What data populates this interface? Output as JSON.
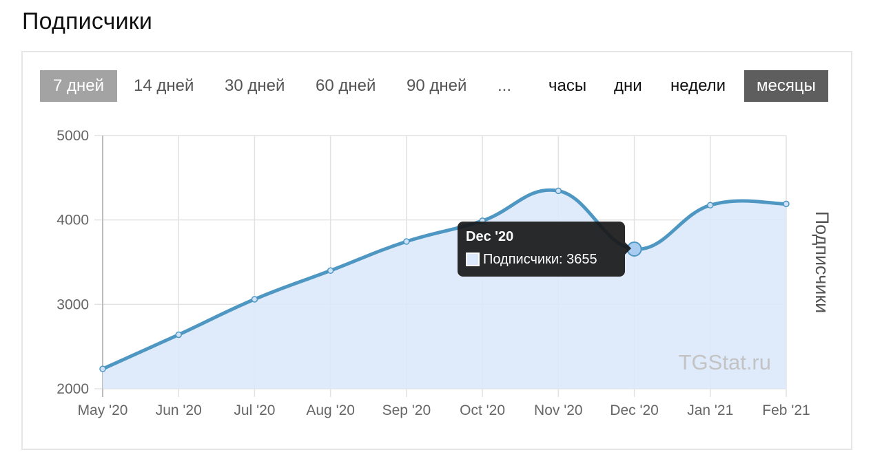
{
  "page": {
    "title": "Подписчики"
  },
  "range_buttons": [
    {
      "label": "7 дней",
      "active": true
    },
    {
      "label": "14 дней",
      "active": false
    },
    {
      "label": "30 дней",
      "active": false
    },
    {
      "label": "60 дней",
      "active": false
    },
    {
      "label": "90 дней",
      "active": false
    },
    {
      "label": "...",
      "active": false
    }
  ],
  "granularity_buttons": [
    {
      "label": "часы",
      "active": false
    },
    {
      "label": "дни",
      "active": false
    },
    {
      "label": "недели",
      "active": false
    },
    {
      "label": "месяцы",
      "active": true
    }
  ],
  "colors": {
    "line": "#4f97c3",
    "fill": "#dce9fa",
    "grid": "#e2e2e2",
    "active_range_bg": "#a3a3a3",
    "active_granularity_bg": "#5e5e5e"
  },
  "tooltip": {
    "title": "Dec '20",
    "series_label": "Подписчики: 3655"
  },
  "watermark": "TGStat.ru",
  "chart_data": {
    "type": "area",
    "title": "",
    "ylabel": "Подписчики",
    "xlabel": "",
    "x": [
      "May '20",
      "Jun '20",
      "Jul '20",
      "Aug '20",
      "Sep '20",
      "Oct '20",
      "Nov '20",
      "Dec '20",
      "Jan '21",
      "Feb '21"
    ],
    "series": [
      {
        "name": "Подписчики",
        "values": [
          2235,
          2640,
          3060,
          3400,
          3745,
          3990,
          4345,
          3655,
          4175,
          4190
        ]
      }
    ],
    "ylim": [
      2000,
      5000
    ],
    "yticks": [
      2000,
      3000,
      4000,
      5000
    ],
    "grid": true,
    "legend": "none",
    "highlighted_index": 7
  }
}
